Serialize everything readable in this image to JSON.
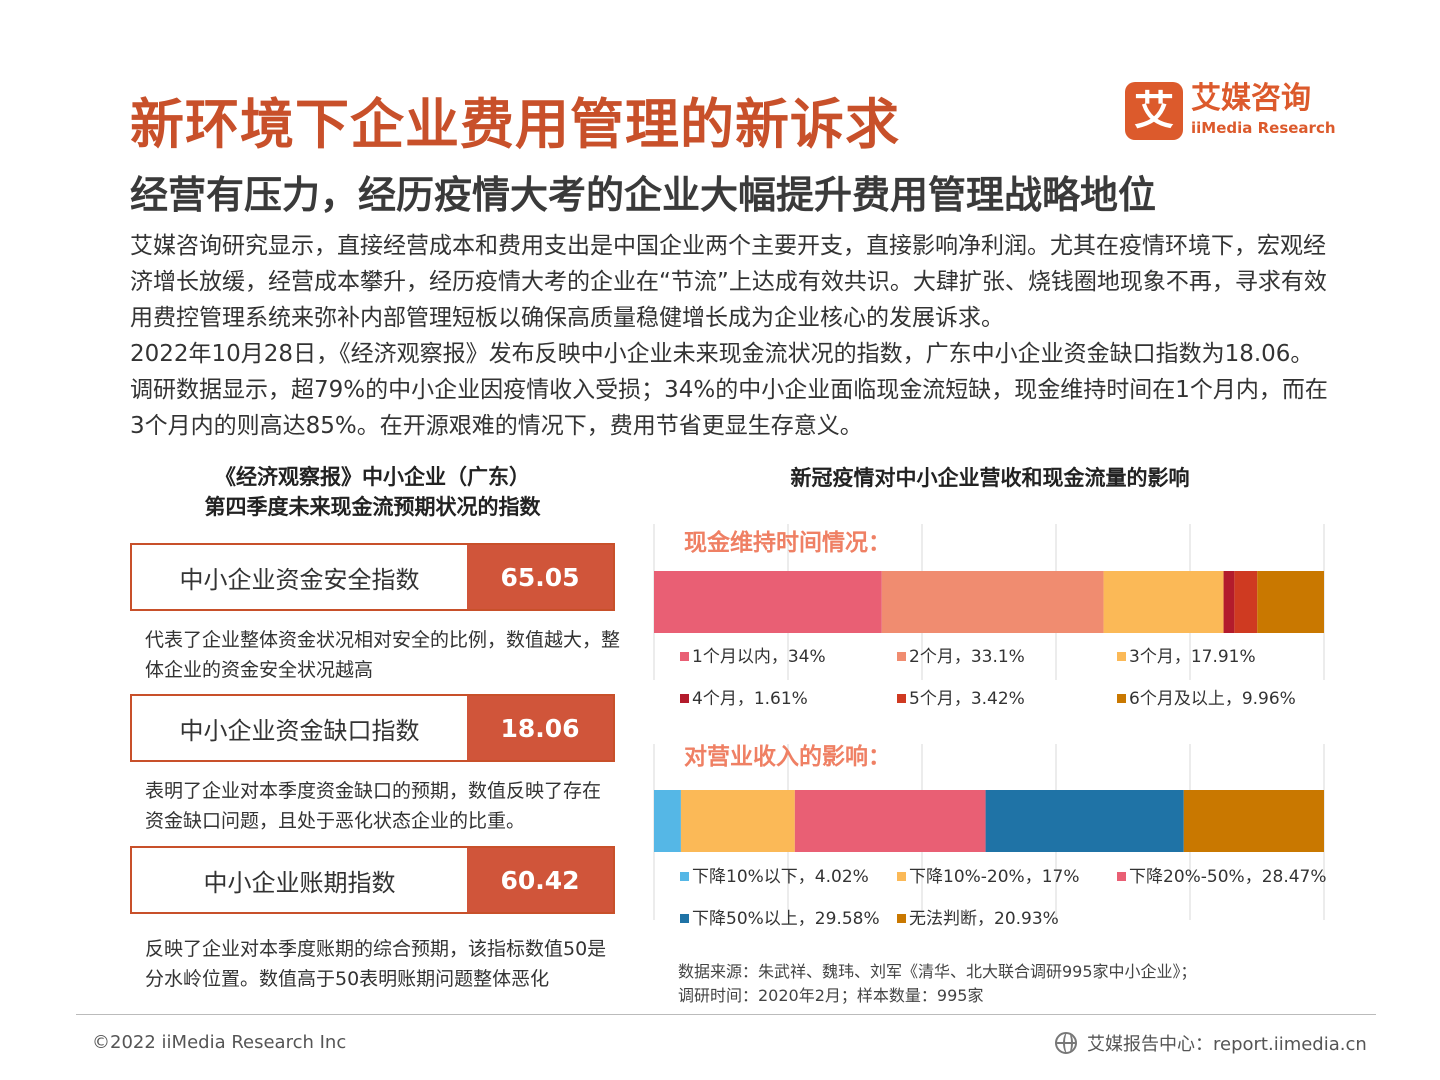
{
  "header": {
    "title": "新环境下企业费用管理的新诉求",
    "subtitle": "经营有压力，经历疫情大考的企业大幅提升费用管理战略地位"
  },
  "logo": {
    "mark": "艾",
    "name_cn": "艾媒咨询",
    "name_en": "iiMedia Research",
    "color": "#dc5a2c"
  },
  "body_text": [
    "艾媒咨询研究显示，直接经营成本和费用支出是中国企业两个主要开支，直接影响净利润。尤其在疫情环境下，宏观经济增长放缓，经营成本攀升，经历疫情大考的企业在“节流”上达成有效共识。大肆扩张、烧钱圈地现象不再，寻求有效用费控管理系统来弥补内部管理短板以确保高质量稳健增长成为企业核心的发展诉求。",
    "2022年10月28日，《经济观察报》发布反映中小企业未来现金流状况的指数，广东中小企业资金缺口指数为18.06。调研数据显示，超79%的中小企业因疫情收入受损；34%的中小企业面临现金流短缺，现金维持时间在1个月内，而在3个月内的则高达85%。在开源艰难的情况下，费用节省更显生存意义。"
  ],
  "left_panel": {
    "title_line1": "《经济观察报》中小企业（广东）",
    "title_line2": "第四季度未来现金流预期状况的指数",
    "indices": [
      {
        "label": "中小企业资金安全指数",
        "value": "65.05",
        "description": "代表了企业整体资金状况相对安全的比例，数值越大，整体企业的资金安全状况越高"
      },
      {
        "label": "中小企业资金缺口指数",
        "value": "18.06",
        "description": "表明了企业对本季度资金缺口的预期，数值反映了存在资金缺口问题，且处于恶化状态企业的比重。"
      },
      {
        "label": "中小企业账期指数",
        "value": "60.42",
        "description": "反映了企业对本季度账期的综合预期，该指标数值50是分水岭位置。数值高于50表明账期问题整体恶化"
      }
    ],
    "accent_color": "#d0553a"
  },
  "right_panel": {
    "title": "新冠疫情对中小企业营收和现金流量的影响",
    "source_line1": "数据来源：朱武祥、魏玮、刘军《清华、北大联合调研995家中小企业》；",
    "source_line2": "调研时间：2020年2月；样本数量：995家"
  },
  "chart_data": [
    {
      "type": "bar",
      "orientation": "horizontal-stacked-100",
      "title": "现金维持时间情况：",
      "grid": true,
      "xlim": [
        0,
        100
      ],
      "series": [
        {
          "name": "1个月以内",
          "value": 34,
          "label": "1个月以内，34%",
          "color": "#e95f74"
        },
        {
          "name": "2个月",
          "value": 33.1,
          "label": "2个月，33.1%",
          "color": "#f08c70"
        },
        {
          "name": "3个月",
          "value": 17.91,
          "label": "3个月，17.91%",
          "color": "#fbb957"
        },
        {
          "name": "4个月",
          "value": 1.61,
          "label": "4个月，1.61%",
          "color": "#b31b2c"
        },
        {
          "name": "5个月",
          "value": 3.42,
          "label": "5个月，3.42%",
          "color": "#cf3a21"
        },
        {
          "name": "6个月及以上",
          "value": 9.96,
          "label": "6个月及以上，9.96%",
          "color": "#c97800"
        }
      ]
    },
    {
      "type": "bar",
      "orientation": "horizontal-stacked-100",
      "title": "对营业收入的影响：",
      "grid": true,
      "xlim": [
        0,
        100
      ],
      "series": [
        {
          "name": "下降10%以下",
          "value": 4.02,
          "label": "下降10%以下，4.02%",
          "color": "#55b7e6"
        },
        {
          "name": "下降10%-20%",
          "value": 17,
          "label": "下降10%-20%，17%",
          "color": "#fbb957"
        },
        {
          "name": "下降20%-50%",
          "value": 28.47,
          "label": "下降20%-50%，28.47%",
          "color": "#e95f74"
        },
        {
          "name": "下降50%以上",
          "value": 29.58,
          "label": "下降50%以上，29.58%",
          "color": "#1f73a6"
        },
        {
          "name": "无法判断",
          "value": 20.93,
          "label": "无法判断，20.93%",
          "color": "#c97800"
        }
      ]
    }
  ],
  "footer": {
    "copyright": "©2022  iiMedia Research  Inc",
    "site": "艾媒报告中心：report.iimedia.cn"
  }
}
